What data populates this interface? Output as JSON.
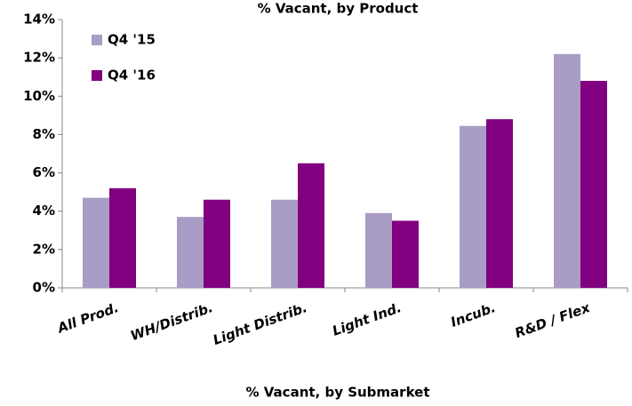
{
  "chart_data": {
    "type": "bar",
    "title": "% Vacant, by Product",
    "x_label": "% Vacant, by Submarket",
    "categories": [
      "All Prod.",
      "WH/Distrib.",
      "Light Distrib.",
      "Light Ind.",
      "Incub.",
      "R&D / Flex"
    ],
    "series": [
      {
        "name": "Q4 '15",
        "color": "#a99cc5",
        "values": [
          4.7,
          3.7,
          4.6,
          3.9,
          8.45,
          12.2
        ]
      },
      {
        "name": "Q4 '16",
        "color": "#800080",
        "values": [
          5.2,
          4.6,
          6.5,
          3.5,
          8.8,
          10.8
        ]
      }
    ],
    "ylim": [
      0,
      14
    ],
    "yticks": [
      {
        "value": 0,
        "label": "0%"
      },
      {
        "value": 2,
        "label": "2%"
      },
      {
        "value": 4,
        "label": "4%"
      },
      {
        "value": 6,
        "label": "6%"
      },
      {
        "value": 8,
        "label": "8%"
      },
      {
        "value": 10,
        "label": "10%"
      },
      {
        "value": 12,
        "label": "12%"
      },
      {
        "value": 14,
        "label": "14%"
      }
    ],
    "grid": false,
    "legend": "top-left"
  }
}
